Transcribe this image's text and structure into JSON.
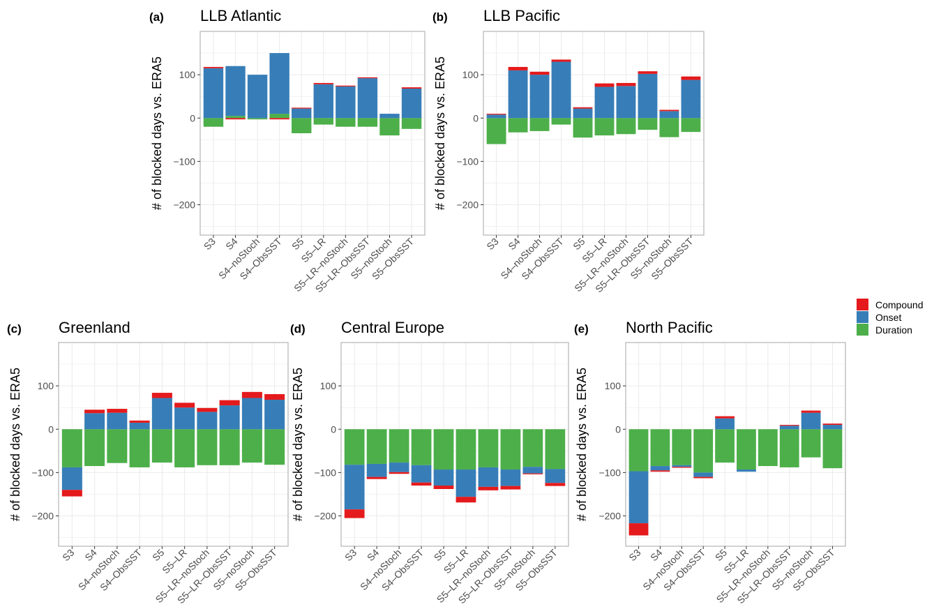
{
  "legend": {
    "entries": [
      {
        "label": "Compound",
        "color": "#e41a1c"
      },
      {
        "label": "Onset",
        "color": "#377eb8"
      },
      {
        "label": "Duration",
        "color": "#4daf4a"
      }
    ]
  },
  "chart_data": [
    {
      "type": "bar",
      "stacked": true,
      "tag": "(a)",
      "title": "LLB Atlantic",
      "ylabel": "# of blocked days vs. ERA5",
      "xlabel": "",
      "ylim": [
        -270,
        200
      ],
      "yticks": [
        -200,
        -100,
        0,
        100
      ],
      "grid": true,
      "categories": [
        "S3",
        "S4",
        "S4–noStoch",
        "S4–ObsSST",
        "S5",
        "S5–LR",
        "S5–LR–noStoch",
        "S5–LR–ObsSST",
        "S5–noStoch",
        "S5–ObsSST"
      ],
      "series": [
        {
          "name": "Duration",
          "values": [
            -20,
            5,
            -3,
            10,
            -35,
            -15,
            -20,
            -20,
            -40,
            -25
          ]
        },
        {
          "name": "Onset",
          "values": [
            115,
            115,
            100,
            140,
            22,
            78,
            73,
            92,
            10,
            68
          ]
        },
        {
          "name": "Compound",
          "values": [
            3,
            -3,
            0,
            -3,
            2,
            3,
            2,
            2,
            0,
            3
          ]
        }
      ]
    },
    {
      "type": "bar",
      "stacked": true,
      "tag": "(b)",
      "title": "LLB Pacific",
      "ylabel": "# of blocked days vs. ERA5",
      "xlabel": "",
      "ylim": [
        -270,
        200
      ],
      "yticks": [
        -200,
        -100,
        0,
        100
      ],
      "grid": true,
      "categories": [
        "S3",
        "S4",
        "S4–noStoch",
        "S4–ObsSST",
        "S5",
        "S5–LR",
        "S5–LR–noStoch",
        "S5–LR–ObsSST",
        "S5–noStoch",
        "S5–ObsSST"
      ],
      "series": [
        {
          "name": "Duration",
          "values": [
            -60,
            -33,
            -30,
            -15,
            -45,
            -40,
            -37,
            -27,
            -44,
            -32
          ]
        },
        {
          "name": "Onset",
          "values": [
            8,
            110,
            100,
            130,
            22,
            72,
            74,
            102,
            16,
            88
          ]
        },
        {
          "name": "Compound",
          "values": [
            2,
            8,
            7,
            5,
            3,
            8,
            7,
            6,
            3,
            8
          ]
        }
      ]
    },
    {
      "type": "bar",
      "stacked": true,
      "tag": "(c)",
      "title": "Greenland",
      "ylabel": "# of blocked days vs. ERA5",
      "xlabel": "",
      "ylim": [
        -270,
        200
      ],
      "yticks": [
        -200,
        -100,
        0,
        100
      ],
      "grid": true,
      "categories": [
        "S3",
        "S4",
        "S4–noStoch",
        "S4–ObsSST",
        "S5",
        "S5–LR",
        "S5–LR–noStoch",
        "S5–LR–ObsSST",
        "S5–noStoch",
        "S5–ObsSST"
      ],
      "series": [
        {
          "name": "Duration",
          "values": [
            -88,
            -85,
            -78,
            -88,
            -77,
            -88,
            -83,
            -83,
            -77,
            -82
          ]
        },
        {
          "name": "Onset",
          "values": [
            -52,
            37,
            38,
            15,
            72,
            50,
            40,
            55,
            72,
            68
          ]
        },
        {
          "name": "Compound",
          "values": [
            -15,
            8,
            9,
            5,
            12,
            11,
            9,
            12,
            14,
            13
          ]
        }
      ]
    },
    {
      "type": "bar",
      "stacked": true,
      "tag": "(d)",
      "title": "Central Europe",
      "ylabel": "# of blocked days vs. ERA5",
      "xlabel": "",
      "ylim": [
        -270,
        200
      ],
      "yticks": [
        -200,
        -100,
        0,
        100
      ],
      "grid": true,
      "categories": [
        "S3",
        "S4",
        "S4–noStoch",
        "S4–ObsSST",
        "S5",
        "S5–LR",
        "S5–LR–noStoch",
        "S5–LR–ObsSST",
        "S5–noStoch",
        "S5–ObsSST"
      ],
      "series": [
        {
          "name": "Duration",
          "values": [
            -82,
            -80,
            -77,
            -83,
            -93,
            -93,
            -88,
            -93,
            -87,
            -92
          ]
        },
        {
          "name": "Onset",
          "values": [
            -103,
            -30,
            -22,
            -40,
            -37,
            -63,
            -45,
            -38,
            -15,
            -32
          ]
        },
        {
          "name": "Compound",
          "values": [
            -20,
            -5,
            -4,
            -7,
            -8,
            -13,
            -8,
            -8,
            -2,
            -7
          ]
        }
      ]
    },
    {
      "type": "bar",
      "stacked": true,
      "tag": "(e)",
      "title": "North Pacific",
      "ylabel": "# of blocked days vs. ERA5",
      "xlabel": "",
      "ylim": [
        -270,
        200
      ],
      "yticks": [
        -200,
        -100,
        0,
        100
      ],
      "grid": true,
      "categories": [
        "S3",
        "S4",
        "S4–noStoch",
        "S4–ObsSST",
        "S5",
        "S5–LR",
        "S5–LR–noStoch",
        "S5–LR–ObsSST",
        "S5–noStoch",
        "S5–ObsSST"
      ],
      "series": [
        {
          "name": "Duration",
          "values": [
            -97,
            -85,
            -83,
            -100,
            -77,
            -93,
            -85,
            -88,
            -65,
            -90
          ]
        },
        {
          "name": "Onset",
          "values": [
            -120,
            -10,
            -4,
            -10,
            25,
            -5,
            0,
            8,
            38,
            10
          ]
        },
        {
          "name": "Compound",
          "values": [
            -28,
            -3,
            -2,
            -3,
            5,
            0,
            0,
            2,
            5,
            3
          ]
        }
      ]
    }
  ]
}
